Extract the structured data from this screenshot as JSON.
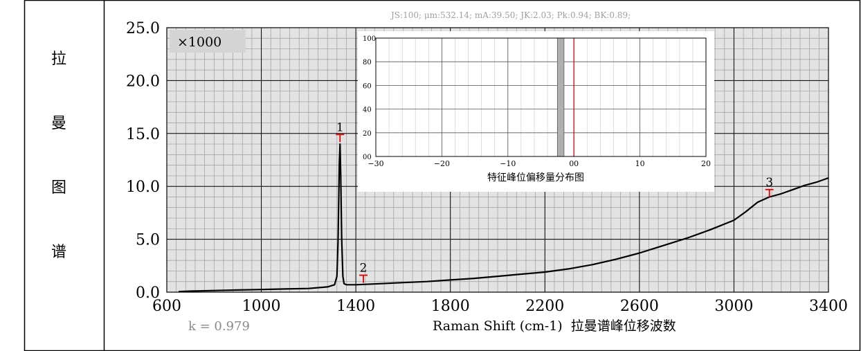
{
  "left_label": [
    "拉",
    "曼",
    "图",
    "谱"
  ],
  "stats_line": "JS:100; μm:532.14; mA:39.50; JK:2.03; Pk:0.94; BK:0.89;",
  "multiplier_label": "×1000",
  "k_label": "k = 0.979",
  "chart_data": [
    {
      "type": "line",
      "xlabel": "Raman Shift (cm-1)  拉曼谱峰位移波数",
      "xlim": [
        600,
        3400
      ],
      "ylim": [
        0,
        25
      ],
      "x_ticks": [
        "600",
        "1000",
        "1400",
        "1800",
        "2200",
        "2600",
        "3000",
        "3400"
      ],
      "y_ticks": [
        "0.0",
        "5.0",
        "10.0",
        "15.0",
        "20.0",
        "25.0"
      ],
      "grid": true,
      "series": [
        {
          "color": "#000000",
          "x": [
            650,
            700,
            800,
            900,
            1000,
            1100,
            1200,
            1280,
            1310,
            1320,
            1325,
            1330,
            1333,
            1336,
            1340,
            1345,
            1350,
            1360,
            1400,
            1500,
            1600,
            1700,
            1800,
            1900,
            2000,
            2100,
            2200,
            2300,
            2400,
            2500,
            2600,
            2700,
            2800,
            2900,
            3000,
            3050,
            3100,
            3150,
            3200,
            3250,
            3300,
            3350,
            3400
          ],
          "y": [
            0.05,
            0.1,
            0.15,
            0.2,
            0.25,
            0.3,
            0.35,
            0.5,
            0.7,
            1.5,
            5.0,
            12.0,
            14.0,
            11.0,
            5.0,
            1.5,
            0.8,
            0.7,
            0.7,
            0.8,
            0.9,
            1.0,
            1.15,
            1.3,
            1.5,
            1.7,
            1.9,
            2.2,
            2.6,
            3.1,
            3.7,
            4.4,
            5.1,
            5.9,
            6.8,
            7.6,
            8.5,
            9.0,
            9.3,
            9.7,
            10.1,
            10.4,
            10.8
          ]
        }
      ],
      "annotations": [
        {
          "label": "1",
          "x": 1333,
          "y": 14.9
        },
        {
          "label": "2",
          "x": 1432,
          "y": 1.6
        },
        {
          "label": "3",
          "x": 3150,
          "y": 9.7
        }
      ]
    },
    {
      "type": "bar",
      "title": "特征峰位偏移量分布图",
      "xlim": [
        -30,
        20
      ],
      "ylim": [
        0,
        100
      ],
      "x_ticks": [
        "−30",
        "−20",
        "−10",
        "00",
        "10",
        "20"
      ],
      "y_ticks": [
        "00",
        "20",
        "40",
        "60",
        "80",
        "100"
      ],
      "bars": [
        {
          "x_from": -2.5,
          "x_to": -1.5,
          "value": 100,
          "color": "#b0b0b0"
        }
      ],
      "reference_line": {
        "x": 0,
        "color": "#d40000"
      }
    }
  ],
  "colors": {
    "plot_bg": "#e3e3e3",
    "marker": "#e00000",
    "inset_bg": "#ffffff"
  }
}
